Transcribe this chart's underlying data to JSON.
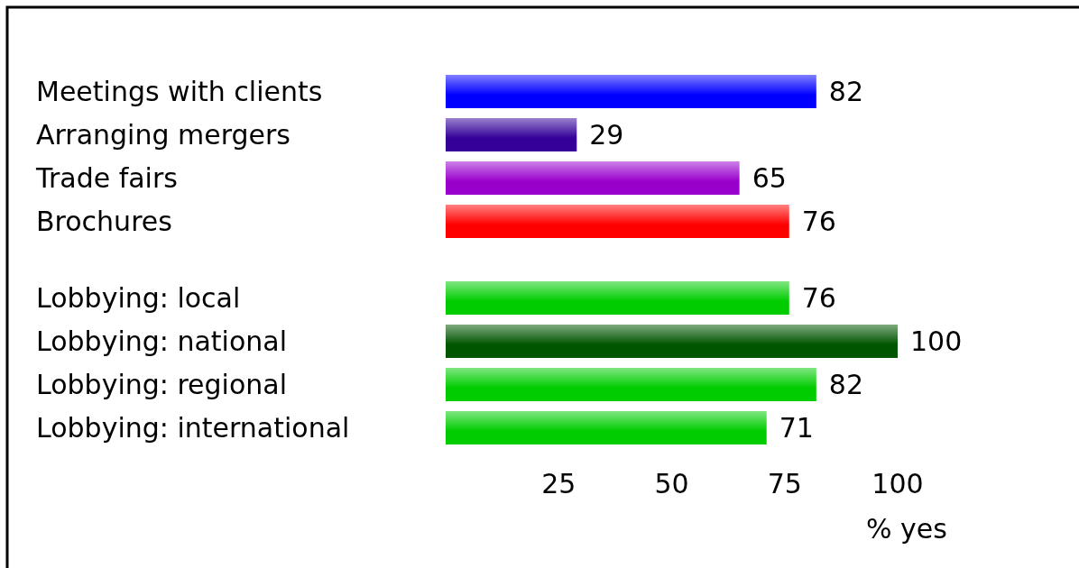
{
  "chart_data": {
    "type": "bar",
    "orientation": "horizontal",
    "categories": [
      "Meetings with clients",
      "Arranging mergers",
      "Trade fairs",
      "Brochures",
      null,
      "Lobbying: local",
      "Lobbying: national",
      "Lobbying: regional",
      "Lobbying: international"
    ],
    "values": [
      82,
      29,
      65,
      76,
      null,
      76,
      100,
      82,
      71
    ],
    "colors": [
      "#0000ff",
      "#330099",
      "#9900cc",
      "#ff0000",
      null,
      "#00cc00",
      "#005500",
      "#00cc00",
      "#00cc00"
    ],
    "xlim": [
      0,
      100
    ],
    "xticks": [
      25,
      50,
      75,
      100
    ],
    "xlabel": "% yes",
    "data_labels": true,
    "grid": false
  }
}
